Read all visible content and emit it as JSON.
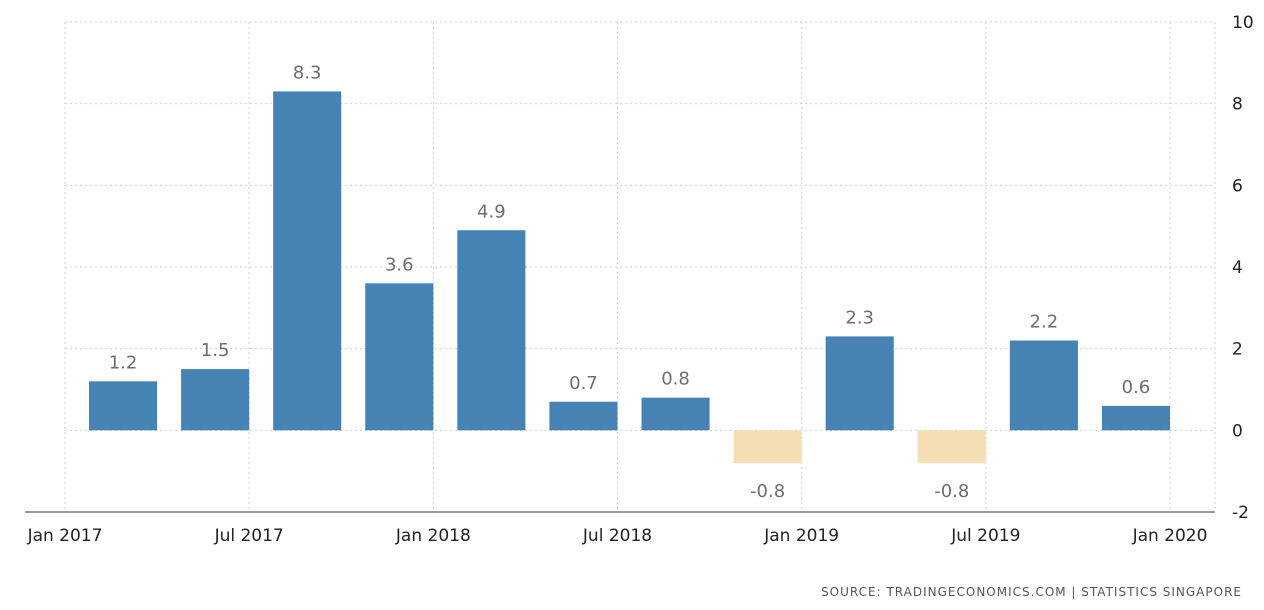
{
  "chart_data": {
    "type": "bar",
    "categories": [
      "Q1 2017",
      "Q2 2017",
      "Q3 2017",
      "Q4 2017",
      "Q1 2018",
      "Q2 2018",
      "Q3 2018",
      "Q4 2018",
      "Q1 2019",
      "Q2 2019",
      "Q3 2019",
      "Q4 2019"
    ],
    "values": [
      1.2,
      1.5,
      8.3,
      3.6,
      4.9,
      0.7,
      0.8,
      -0.8,
      2.3,
      -0.8,
      2.2,
      0.6
    ],
    "data_labels": [
      "1.2",
      "1.5",
      "8.3",
      "3.6",
      "4.9",
      "0.7",
      "0.8",
      "-0.8",
      "2.3",
      "-0.8",
      "2.2",
      "0.6"
    ],
    "x_tick_labels": [
      "Jan 2017",
      "Jul 2017",
      "Jan 2018",
      "Jul 2018",
      "Jan 2019",
      "Jul 2019",
      "Jan 2020"
    ],
    "y_ticks": [
      -2,
      0,
      2,
      4,
      6,
      8,
      10
    ],
    "y_tick_labels": [
      "-2",
      "0",
      "2",
      "4",
      "6",
      "8",
      "10"
    ],
    "ylim": [
      -2,
      10
    ],
    "y_axis_side": "right",
    "grid": true,
    "legend": "none",
    "title": "",
    "xlabel": "",
    "ylabel": "",
    "colors": {
      "positive": "#4682b4",
      "negative": "#f5deb3"
    }
  },
  "source_text": "SOURCE: TRADINGECONOMICS.COM  |  STATISTICS SINGAPORE"
}
